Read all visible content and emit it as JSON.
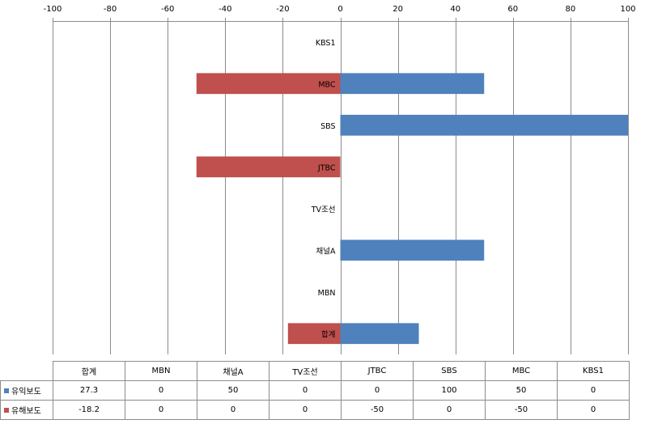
{
  "chart_data": {
    "type": "bar",
    "orientation": "horizontal",
    "categories": [
      "KBS1",
      "MBC",
      "SBS",
      "JTBC",
      "TV조선",
      "채널A",
      "MBN",
      "합계"
    ],
    "series": [
      {
        "name": "유익보도",
        "color": "#4f81bd",
        "values": [
          0,
          50,
          100,
          0,
          0,
          50,
          0,
          27.3
        ]
      },
      {
        "name": "유해보도",
        "color": "#c0504d",
        "values": [
          0,
          -50,
          0,
          -50,
          0,
          0,
          0,
          -18.2
        ]
      }
    ],
    "xlim": [
      -100,
      100
    ],
    "xticks": [
      -100,
      -80,
      -60,
      -40,
      -20,
      0,
      20,
      40,
      60,
      80,
      100
    ],
    "x_axis_position": "top",
    "grid": true,
    "legend": "data table below chart"
  },
  "table": {
    "columns": [
      "합계",
      "MBN",
      "채널A",
      "TV조선",
      "JTBC",
      "SBS",
      "MBC",
      "KBS1"
    ],
    "rows": [
      {
        "label": "유익보도",
        "color": "#4f81bd",
        "values": [
          "27.3",
          "0",
          "50",
          "0",
          "0",
          "100",
          "50",
          "0"
        ]
      },
      {
        "label": "유해보도",
        "color": "#c0504d",
        "values": [
          "-18.2",
          "0",
          "0",
          "0",
          "-50",
          "0",
          "-50",
          "0"
        ]
      }
    ]
  }
}
